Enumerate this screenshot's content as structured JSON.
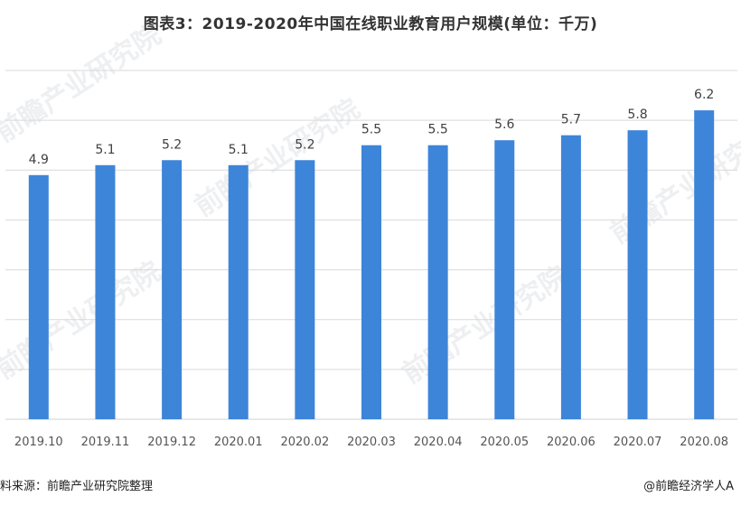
{
  "title": "图表3：2019-2020年中国在线职业教育用户规模(单位：千万)",
  "source_left": "料来源：前瞻产业研究院整理",
  "source_right": "@前瞻经济学人A",
  "watermark_text": "前瞻产业研究院",
  "colors": {
    "bar": "#3d85d9",
    "grid": "#d9d9d9",
    "label": "#404040",
    "axis_text": "#555555"
  },
  "chart_data": {
    "type": "bar",
    "title": "图表3：2019-2020年中国在线职业教育用户规模(单位：千万)",
    "categories": [
      "2019.10",
      "2019.11",
      "2019.12",
      "2020.01",
      "2020.02",
      "2020.03",
      "2020.04",
      "2020.05",
      "2020.06",
      "2020.07",
      "2020.08"
    ],
    "series": [
      {
        "values": [
          4.9,
          5.1,
          5.2,
          5.1,
          5.2,
          5.5,
          5.5,
          5.6,
          5.7,
          5.8,
          6.2
        ]
      }
    ],
    "data_labels": [
      "4.9",
      "5.1",
      "5.2",
      "5.1",
      "5.2",
      "5.5",
      "5.5",
      "5.6",
      "5.7",
      "5.8",
      "6.2"
    ],
    "ylim": [
      0,
      7
    ],
    "grid": true,
    "y_tick_labels_shown": false,
    "xlabel": "",
    "ylabel": ""
  }
}
